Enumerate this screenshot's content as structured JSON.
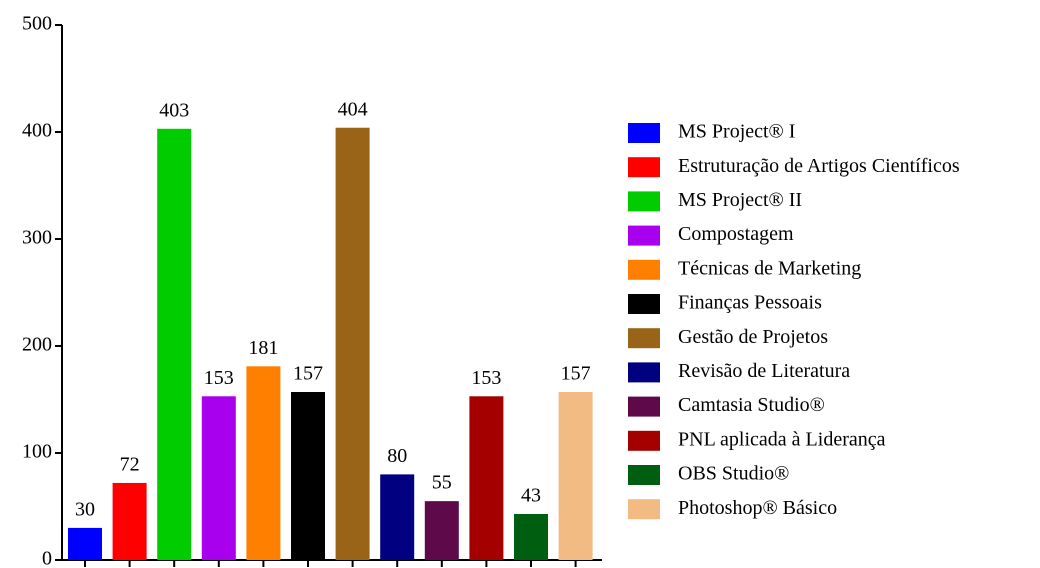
{
  "chart_data": {
    "type": "bar",
    "categories": [
      "MS Project® I",
      "Estruturação de Artigos Científicos",
      "MS Project® II",
      "Compostagem",
      "Técnicas de Marketing",
      "Finanças Pessoais",
      "Gestão de Projetos",
      "Revisão de Literatura",
      "Camtasia Studio®",
      "PNL aplicada à Liderança",
      "OBS Studio®",
      "Photoshop® Básico"
    ],
    "values": [
      30,
      72,
      403,
      153,
      181,
      157,
      404,
      80,
      55,
      153,
      43,
      157
    ],
    "colors": [
      "#0000ff",
      "#ff0000",
      "#00cc00",
      "#a800ee",
      "#ff8000",
      "#000000",
      "#996418",
      "#000080",
      "#5e0a4a",
      "#a50000",
      "#005e10",
      "#f2bb84"
    ],
    "ylim": [
      0,
      500
    ],
    "yticks": [
      0,
      100,
      200,
      300,
      400,
      500
    ],
    "legend": "right"
  }
}
